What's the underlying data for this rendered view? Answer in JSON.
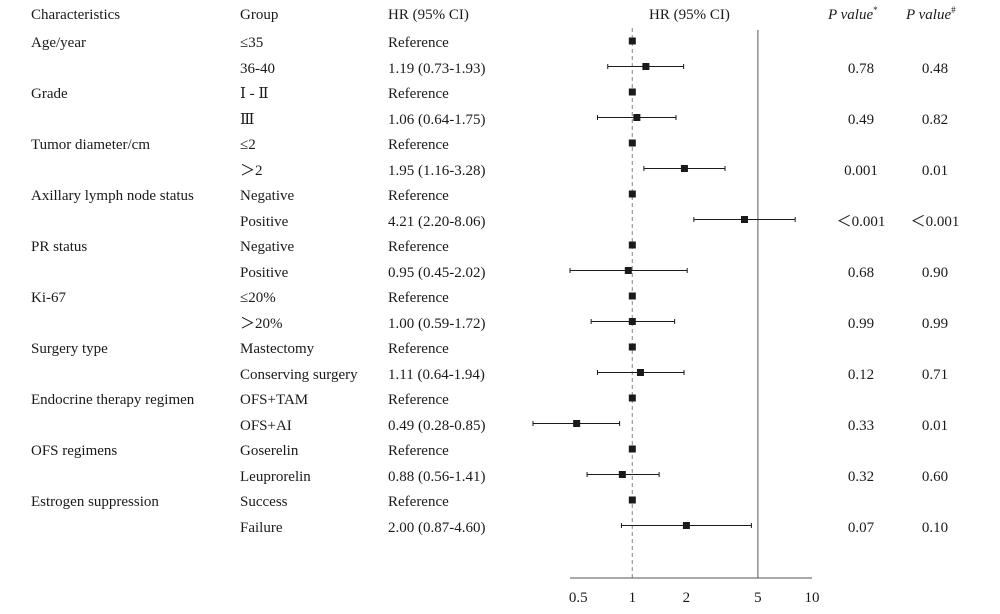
{
  "headers": {
    "characteristics": "Characteristics",
    "group": "Group",
    "hr_ci": "HR (95% CI)",
    "plot": "HR (95% CI)",
    "p1": "P value",
    "p1_sup": "*",
    "p2": "P value",
    "p2_sup": "#"
  },
  "rows": [
    {
      "characteristic": "Age/year",
      "group": "≤35",
      "hr_text": "Reference",
      "p1": "",
      "p2": ""
    },
    {
      "characteristic": "",
      "group": "36-40",
      "hr_text": "1.19 (0.73-1.93)",
      "p1": "0.78",
      "p2": "0.48"
    },
    {
      "characteristic": "Grade",
      "group": "Ⅰ - Ⅱ",
      "hr_text": "Reference",
      "p1": "",
      "p2": ""
    },
    {
      "characteristic": "",
      "group": "Ⅲ",
      "hr_text": "1.06 (0.64-1.75)",
      "p1": "0.49",
      "p2": "0.82"
    },
    {
      "characteristic": "Tumor diameter/cm",
      "group": "≤2",
      "hr_text": "Reference",
      "p1": "",
      "p2": ""
    },
    {
      "characteristic": "",
      "group": "＞2",
      "hr_text": "1.95 (1.16-3.28)",
      "p1": "0.001",
      "p2": "0.01"
    },
    {
      "characteristic": "Axillary lymph node status",
      "group": "Negative",
      "hr_text": "Reference",
      "p1": "",
      "p2": ""
    },
    {
      "characteristic": "",
      "group": "Positive",
      "hr_text": "4.21 (2.20-8.06)",
      "p1": "＜0.001",
      "p2": "＜0.001"
    },
    {
      "characteristic": "PR status",
      "group": "Negative",
      "hr_text": "Reference",
      "p1": "",
      "p2": ""
    },
    {
      "characteristic": "",
      "group": "Positive",
      "hr_text": "0.95 (0.45-2.02)",
      "p1": "0.68",
      "p2": "0.90"
    },
    {
      "characteristic": "Ki-67",
      "group": "≤20%",
      "hr_text": "Reference",
      "p1": "",
      "p2": ""
    },
    {
      "characteristic": "",
      "group": "＞20%",
      "hr_text": "1.00 (0.59-1.72)",
      "p1": "0.99",
      "p2": "0.99"
    },
    {
      "characteristic": "Surgery type",
      "group": "Mastectomy",
      "hr_text": "Reference",
      "p1": "",
      "p2": ""
    },
    {
      "characteristic": "",
      "group": "Conserving surgery",
      "hr_text": "1.11 (0.64-1.94)",
      "p1": "0.12",
      "p2": "0.71"
    },
    {
      "characteristic": "Endocrine therapy regimen",
      "group": "OFS+TAM",
      "hr_text": "Reference",
      "p1": "",
      "p2": ""
    },
    {
      "characteristic": "",
      "group": "OFS+AI",
      "hr_text": "0.49 (0.28-0.85)",
      "p1": "0.33",
      "p2": "0.01"
    },
    {
      "characteristic": "OFS regimens",
      "group": "Goserelin",
      "hr_text": "Reference",
      "p1": "",
      "p2": ""
    },
    {
      "characteristic": "",
      "group": "Leuprorelin",
      "hr_text": "0.88 (0.56-1.41)",
      "p1": "0.32",
      "p2": "0.60"
    },
    {
      "characteristic": "Estrogen suppression",
      "group": "Success",
      "hr_text": "Reference",
      "p1": "",
      "p2": ""
    },
    {
      "characteristic": "",
      "group": "Failure",
      "hr_text": "2.00 (0.87-4.60)",
      "p1": "0.07",
      "p2": "0.10"
    }
  ],
  "chart_data": {
    "type": "scatter",
    "subtype": "forest-plot",
    "x_scale": "log",
    "xlim": [
      0.45,
      10
    ],
    "x_ticks": [
      0.5,
      1,
      2,
      5,
      10
    ],
    "x_tick_labels": [
      "0.5",
      "1",
      "2",
      "5",
      "10"
    ],
    "reference_lines": [
      1,
      5
    ],
    "grid": false,
    "points": [
      {
        "hr": 1.0,
        "lo": null,
        "hi": null
      },
      {
        "hr": 1.19,
        "lo": 0.73,
        "hi": 1.93
      },
      {
        "hr": 1.0,
        "lo": null,
        "hi": null
      },
      {
        "hr": 1.06,
        "lo": 0.64,
        "hi": 1.75
      },
      {
        "hr": 1.0,
        "lo": null,
        "hi": null
      },
      {
        "hr": 1.95,
        "lo": 1.16,
        "hi": 3.28
      },
      {
        "hr": 1.0,
        "lo": null,
        "hi": null
      },
      {
        "hr": 4.21,
        "lo": 2.2,
        "hi": 8.06
      },
      {
        "hr": 1.0,
        "lo": null,
        "hi": null
      },
      {
        "hr": 0.95,
        "lo": 0.45,
        "hi": 2.02
      },
      {
        "hr": 1.0,
        "lo": null,
        "hi": null
      },
      {
        "hr": 1.0,
        "lo": 0.59,
        "hi": 1.72
      },
      {
        "hr": 1.0,
        "lo": null,
        "hi": null
      },
      {
        "hr": 1.11,
        "lo": 0.64,
        "hi": 1.94
      },
      {
        "hr": 1.0,
        "lo": null,
        "hi": null
      },
      {
        "hr": 0.49,
        "lo": 0.28,
        "hi": 0.85
      },
      {
        "hr": 1.0,
        "lo": null,
        "hi": null
      },
      {
        "hr": 0.88,
        "lo": 0.56,
        "hi": 1.41
      },
      {
        "hr": 1.0,
        "lo": null,
        "hi": null
      },
      {
        "hr": 2.0,
        "lo": 0.87,
        "hi": 4.6
      }
    ],
    "colors": {
      "marker": "#1a1a1a",
      "axis": "#555555",
      "ref_line": "#999999"
    }
  }
}
